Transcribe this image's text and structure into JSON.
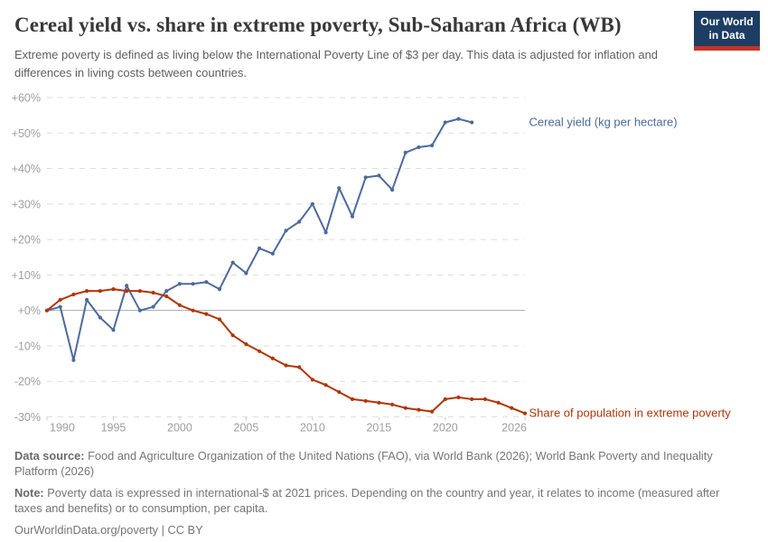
{
  "header": {
    "title": "Cereal yield vs. share in extreme poverty, Sub-Saharan Africa (WB)",
    "subtitle": "Extreme poverty is defined as living below the International Poverty Line of $3 per day. This data is adjusted for inflation and differences in living costs between countries.",
    "logo": {
      "line1": "Our World",
      "line2": "in Data",
      "bg_color": "#1d3d63",
      "stripe_color": "#c53325"
    }
  },
  "chart_data": {
    "type": "line",
    "title": "Cereal yield vs. share in extreme poverty, Sub-Saharan Africa (WB)",
    "value_format": "percent change since 1990",
    "x_range": [
      1990,
      2026
    ],
    "ylim": [
      -30,
      60
    ],
    "grid": "horizontal dashed",
    "legend_position": "end-of-line labels",
    "axis_colors": {
      "gridline": "#dedede",
      "zero_line": "#a8a8a8",
      "tick_label": "#9e9e9e",
      "tick_mark": "#cccccc"
    },
    "yticks": [
      {
        "value": 60,
        "label": "+60%"
      },
      {
        "value": 50,
        "label": "+50%"
      },
      {
        "value": 40,
        "label": "+40%"
      },
      {
        "value": 30,
        "label": "+30%"
      },
      {
        "value": 20,
        "label": "+20%"
      },
      {
        "value": 10,
        "label": "+10%"
      },
      {
        "value": 0,
        "label": "+0%"
      },
      {
        "value": -10,
        "label": "-10%"
      },
      {
        "value": -20,
        "label": "-20%"
      },
      {
        "value": -30,
        "label": "-30%"
      }
    ],
    "xticks": [
      {
        "value": 1990,
        "label": "1990"
      },
      {
        "value": 1995,
        "label": "1995"
      },
      {
        "value": 2000,
        "label": "2000"
      },
      {
        "value": 2005,
        "label": "2005"
      },
      {
        "value": 2010,
        "label": "2010"
      },
      {
        "value": 2015,
        "label": "2015"
      },
      {
        "value": 2020,
        "label": "2020"
      },
      {
        "value": 2026,
        "label": "2026"
      }
    ],
    "series": [
      {
        "name": "Cereal yield (kg per hectare)",
        "color": "#4C6A9C",
        "start_year": 1990,
        "end_year": 2022,
        "values": [
          0,
          1,
          -14,
          3,
          -2,
          -5.5,
          7,
          0,
          1,
          5.5,
          7.5,
          7.5,
          8,
          6,
          13.5,
          10.5,
          17.5,
          16,
          22.5,
          25,
          30,
          22,
          34.5,
          26.5,
          37.5,
          38,
          34,
          44.5,
          46,
          46.5,
          53,
          54,
          53
        ]
      },
      {
        "name": "Share of population in extreme poverty",
        "color": "#B13507",
        "start_year": 1990,
        "end_year": 2026,
        "values": [
          0,
          3,
          4.5,
          5.5,
          5.5,
          6,
          5.5,
          5.5,
          5,
          4,
          1.5,
          0,
          -1,
          -2.5,
          -7,
          -9.5,
          -11.5,
          -13.5,
          -15.5,
          -16,
          -19.5,
          -21,
          -23,
          -25,
          -25.5,
          -26,
          -26.5,
          -27.5,
          -28,
          -28.5,
          -25,
          -24.5,
          -25,
          -25,
          -26,
          -27.5,
          -29
        ]
      }
    ]
  },
  "footer": {
    "data_source_label": "Data source:",
    "data_source_text": "Food and Agriculture Organization of the United Nations (FAO), via World Bank (2026); World Bank Poverty and Inequality Platform (2026)",
    "note_label": "Note:",
    "note_text": "Poverty data is expressed in international-$ at 2021 prices. Depending on the country and year, it relates to income (measured after taxes and benefits) or to consumption, per capita.",
    "citation": "OurWorldinData.org/poverty | CC BY"
  }
}
